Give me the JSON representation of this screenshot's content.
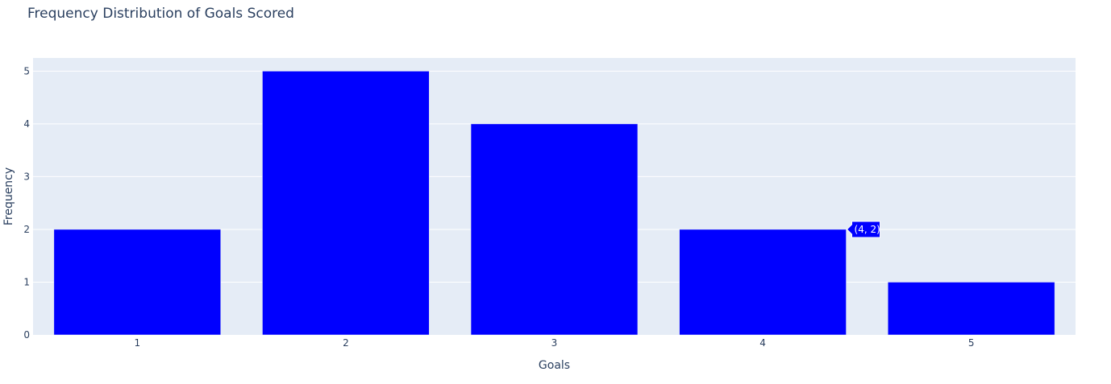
{
  "chart_data": {
    "type": "bar",
    "title": "Frequency Distribution of Goals Scored",
    "xlabel": "Goals",
    "ylabel": "Frequency",
    "categories": [
      "1",
      "2",
      "3",
      "4",
      "5"
    ],
    "values": [
      2,
      5,
      4,
      2,
      1
    ],
    "ylim": [
      0,
      5.25
    ],
    "yticks": [
      0,
      1,
      2,
      3,
      4,
      5
    ],
    "grid": true,
    "legend": "none",
    "bar_color": "#0000ff",
    "plot_background": "#e5ecf6",
    "gridline_color": "#ffffff",
    "text_color": "#2a3f5f",
    "hover_label": {
      "category": "4",
      "value": 2,
      "text": "(4, 2)"
    }
  }
}
